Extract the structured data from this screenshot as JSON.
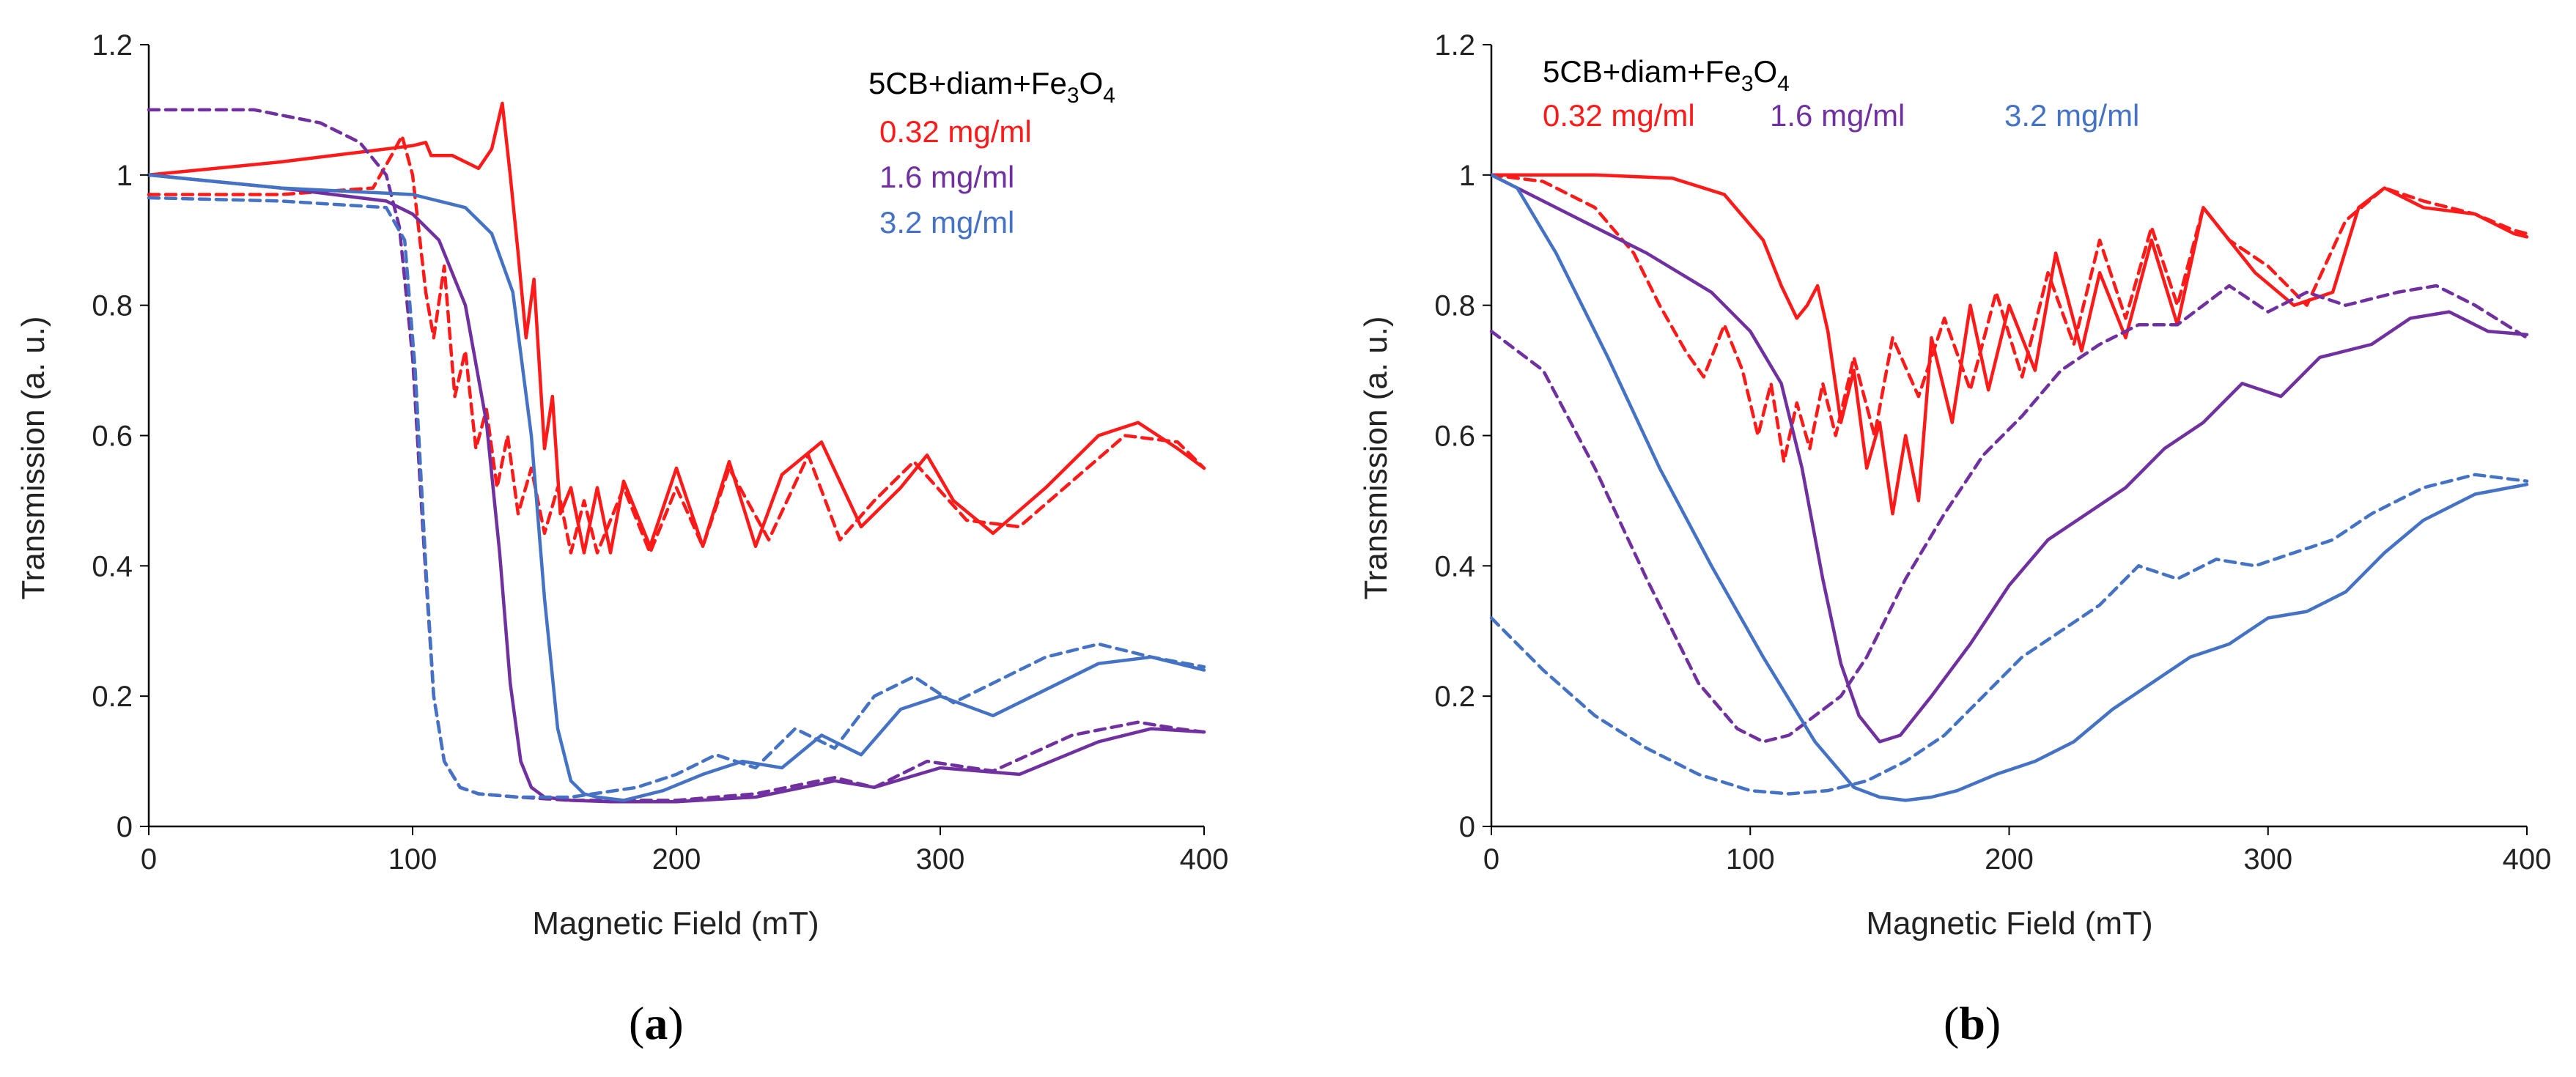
{
  "chart_data": [
    {
      "panel_label": "a",
      "type": "line",
      "xlabel": "Magnetic Field (mT)",
      "ylabel": "Transmission (a. u.)",
      "xlim": [
        0,
        400
      ],
      "ylim": [
        0,
        1.2
      ],
      "x_ticks": [
        "0",
        "100",
        "200",
        "300",
        "400"
      ],
      "y_ticks": [
        "0",
        "0.2",
        "0.4",
        "0.6",
        "0.8",
        "1",
        "1.2"
      ],
      "grid": false,
      "legend_position": "top-right",
      "legend": {
        "title": "5CB+diam+Fe3O4",
        "title_main": "5CB+diam+Fe",
        "title_sub1": "3",
        "title_mid": "O",
        "title_sub2": "4",
        "entries": [
          {
            "label": "0.32 mg/ml",
            "color": "#ff1a1a"
          },
          {
            "label": "1.6 mg/ml",
            "color": "#7030a0"
          },
          {
            "label": "3.2 mg/ml",
            "color": "#4472c4"
          }
        ]
      },
      "series": [
        {
          "conc": "0.32 mg/ml",
          "style": "solid",
          "color": "#ff1a1a",
          "x": [
            0,
            50,
            90,
            100,
            105,
            107,
            115,
            125,
            130,
            134,
            137,
            140,
            143,
            146,
            150,
            153,
            156,
            160,
            165,
            170,
            175,
            180,
            190,
            200,
            210,
            220,
            230,
            240,
            255,
            270,
            285,
            295,
            305,
            320,
            340,
            360,
            375,
            390,
            400
          ],
          "y": [
            1.0,
            1.02,
            1.04,
            1.045,
            1.05,
            1.03,
            1.03,
            1.01,
            1.04,
            1.11,
            1.0,
            0.88,
            0.75,
            0.84,
            0.58,
            0.66,
            0.48,
            0.52,
            0.42,
            0.52,
            0.42,
            0.53,
            0.43,
            0.55,
            0.43,
            0.56,
            0.43,
            0.54,
            0.59,
            0.46,
            0.52,
            0.57,
            0.5,
            0.45,
            0.52,
            0.6,
            0.62,
            0.58,
            0.55
          ]
        },
        {
          "conc": "0.32 mg/ml",
          "style": "dashed",
          "color": "#ff1a1a",
          "x": [
            0,
            50,
            85,
            92,
            96,
            100,
            105,
            108,
            112,
            116,
            120,
            124,
            128,
            132,
            136,
            140,
            145,
            150,
            155,
            160,
            165,
            170,
            180,
            190,
            200,
            210,
            220,
            235,
            250,
            262,
            275,
            290,
            310,
            330,
            350,
            370,
            390,
            400
          ],
          "y": [
            0.97,
            0.97,
            0.98,
            1.03,
            1.06,
            1.0,
            0.82,
            0.75,
            0.86,
            0.66,
            0.73,
            0.58,
            0.64,
            0.52,
            0.6,
            0.48,
            0.55,
            0.45,
            0.52,
            0.42,
            0.5,
            0.42,
            0.52,
            0.42,
            0.52,
            0.43,
            0.55,
            0.44,
            0.57,
            0.44,
            0.5,
            0.56,
            0.47,
            0.46,
            0.53,
            0.6,
            0.59,
            0.55
          ]
        },
        {
          "conc": "1.6 mg/ml",
          "style": "solid",
          "color": "#7030a0",
          "x": [
            0,
            50,
            90,
            100,
            110,
            120,
            128,
            133,
            137,
            141,
            145,
            150,
            160,
            175,
            200,
            230,
            260,
            275,
            300,
            330,
            360,
            380,
            400
          ],
          "y": [
            1.0,
            0.98,
            0.96,
            0.94,
            0.9,
            0.8,
            0.62,
            0.42,
            0.22,
            0.1,
            0.06,
            0.045,
            0.04,
            0.038,
            0.038,
            0.045,
            0.07,
            0.06,
            0.09,
            0.08,
            0.13,
            0.15,
            0.145
          ]
        },
        {
          "conc": "1.6 mg/ml",
          "style": "dashed",
          "color": "#7030a0",
          "x": [
            0,
            40,
            65,
            80,
            90,
            95,
            100,
            104,
            108,
            112,
            118,
            125,
            140,
            160,
            200,
            230,
            260,
            275,
            295,
            320,
            350,
            375,
            390,
            400
          ],
          "y": [
            1.1,
            1.1,
            1.08,
            1.05,
            1.0,
            0.92,
            0.72,
            0.45,
            0.2,
            0.1,
            0.06,
            0.05,
            0.045,
            0.04,
            0.04,
            0.05,
            0.075,
            0.06,
            0.1,
            0.085,
            0.14,
            0.16,
            0.15,
            0.145
          ]
        },
        {
          "conc": "3.2 mg/ml",
          "style": "solid",
          "color": "#4472c4",
          "x": [
            0,
            50,
            100,
            120,
            130,
            138,
            145,
            150,
            155,
            160,
            165,
            170,
            180,
            195,
            210,
            225,
            240,
            255,
            270,
            285,
            300,
            320,
            340,
            360,
            380,
            400
          ],
          "y": [
            1.0,
            0.98,
            0.97,
            0.95,
            0.91,
            0.82,
            0.6,
            0.35,
            0.15,
            0.07,
            0.05,
            0.045,
            0.04,
            0.055,
            0.08,
            0.1,
            0.09,
            0.14,
            0.11,
            0.18,
            0.2,
            0.17,
            0.21,
            0.25,
            0.26,
            0.24
          ]
        },
        {
          "conc": "3.2 mg/ml",
          "style": "dashed",
          "color": "#4472c4",
          "x": [
            0,
            50,
            90,
            97,
            101,
            105,
            108,
            112,
            118,
            125,
            140,
            160,
            185,
            200,
            215,
            230,
            245,
            260,
            275,
            290,
            305,
            320,
            340,
            360,
            380,
            400
          ],
          "y": [
            0.965,
            0.96,
            0.95,
            0.9,
            0.7,
            0.4,
            0.2,
            0.1,
            0.06,
            0.05,
            0.045,
            0.045,
            0.06,
            0.08,
            0.11,
            0.09,
            0.15,
            0.12,
            0.2,
            0.23,
            0.19,
            0.22,
            0.26,
            0.28,
            0.26,
            0.245
          ]
        }
      ]
    },
    {
      "panel_label": "b",
      "type": "line",
      "xlabel": "Magnetic Field (mT)",
      "ylabel": "Transmission (a. u.)",
      "xlim": [
        0,
        400
      ],
      "ylim": [
        0,
        1.2
      ],
      "x_ticks": [
        "0",
        "100",
        "200",
        "300",
        "400"
      ],
      "y_ticks": [
        "0",
        "0.2",
        "0.4",
        "0.6",
        "0.8",
        "1",
        "1.2"
      ],
      "grid": false,
      "legend_position": "top",
      "legend": {
        "title": "5CB+diam+Fe3O4",
        "title_main": "5CB+diam+Fe",
        "title_sub1": "3",
        "title_mid": "O",
        "title_sub2": "4",
        "entries": [
          {
            "label": "0.32 mg/ml",
            "color": "#ff1a1a"
          },
          {
            "label": "1.6 mg/ml",
            "color": "#7030a0"
          },
          {
            "label": "3.2 mg/ml",
            "color": "#4472c4"
          }
        ]
      },
      "series": [
        {
          "conc": "0.32 mg/ml",
          "style": "solid",
          "color": "#ff1a1a",
          "x": [
            0,
            40,
            70,
            90,
            105,
            112,
            118,
            122,
            126,
            130,
            135,
            140,
            145,
            150,
            155,
            160,
            165,
            170,
            178,
            185,
            192,
            200,
            210,
            218,
            228,
            235,
            245,
            255,
            265,
            275,
            285,
            295,
            310,
            325,
            335,
            345,
            360,
            380,
            395,
            400
          ],
          "y": [
            1.0,
            1.0,
            0.995,
            0.97,
            0.9,
            0.83,
            0.78,
            0.8,
            0.83,
            0.76,
            0.62,
            0.7,
            0.55,
            0.62,
            0.48,
            0.6,
            0.5,
            0.75,
            0.62,
            0.8,
            0.67,
            0.8,
            0.7,
            0.88,
            0.73,
            0.85,
            0.75,
            0.9,
            0.77,
            0.95,
            0.9,
            0.85,
            0.8,
            0.82,
            0.95,
            0.98,
            0.95,
            0.94,
            0.91,
            0.905
          ]
        },
        {
          "conc": "0.32 mg/ml",
          "style": "dashed",
          "color": "#ff1a1a",
          "x": [
            0,
            20,
            40,
            55,
            65,
            75,
            82,
            90,
            97,
            103,
            108,
            113,
            118,
            123,
            128,
            133,
            140,
            148,
            155,
            165,
            175,
            185,
            195,
            205,
            215,
            225,
            235,
            245,
            255,
            265,
            275,
            285,
            300,
            315,
            330,
            345,
            360,
            380,
            395,
            400
          ],
          "y": [
            1.0,
            0.99,
            0.95,
            0.88,
            0.8,
            0.73,
            0.69,
            0.77,
            0.7,
            0.6,
            0.68,
            0.56,
            0.65,
            0.58,
            0.68,
            0.6,
            0.72,
            0.6,
            0.75,
            0.66,
            0.78,
            0.67,
            0.82,
            0.69,
            0.85,
            0.74,
            0.9,
            0.78,
            0.92,
            0.8,
            0.95,
            0.9,
            0.86,
            0.8,
            0.93,
            0.98,
            0.96,
            0.94,
            0.915,
            0.91
          ]
        },
        {
          "conc": "1.6 mg/ml",
          "style": "solid",
          "color": "#7030a0",
          "x": [
            0,
            15,
            35,
            60,
            85,
            100,
            112,
            120,
            128,
            135,
            142,
            150,
            158,
            170,
            185,
            200,
            215,
            230,
            245,
            260,
            275,
            290,
            305,
            320,
            340,
            355,
            370,
            385,
            400
          ],
          "y": [
            1.0,
            0.97,
            0.93,
            0.88,
            0.82,
            0.76,
            0.68,
            0.55,
            0.38,
            0.25,
            0.17,
            0.13,
            0.14,
            0.2,
            0.28,
            0.37,
            0.44,
            0.48,
            0.52,
            0.58,
            0.62,
            0.68,
            0.66,
            0.72,
            0.74,
            0.78,
            0.79,
            0.76,
            0.755
          ]
        },
        {
          "conc": "1.6 mg/ml",
          "style": "dashed",
          "color": "#7030a0",
          "x": [
            0,
            20,
            40,
            60,
            80,
            95,
            105,
            115,
            125,
            135,
            145,
            160,
            175,
            190,
            205,
            220,
            235,
            250,
            265,
            275,
            285,
            300,
            315,
            330,
            350,
            365,
            380,
            400
          ],
          "y": [
            0.76,
            0.7,
            0.55,
            0.38,
            0.22,
            0.15,
            0.13,
            0.14,
            0.17,
            0.2,
            0.26,
            0.38,
            0.48,
            0.57,
            0.63,
            0.7,
            0.74,
            0.77,
            0.77,
            0.8,
            0.83,
            0.79,
            0.82,
            0.8,
            0.82,
            0.83,
            0.8,
            0.75
          ]
        },
        {
          "conc": "3.2 mg/ml",
          "style": "solid",
          "color": "#4472c4",
          "x": [
            0,
            10,
            25,
            45,
            65,
            85,
            105,
            125,
            140,
            150,
            160,
            170,
            180,
            195,
            210,
            225,
            240,
            255,
            270,
            285,
            300,
            315,
            330,
            345,
            360,
            380,
            400
          ],
          "y": [
            1.0,
            0.98,
            0.88,
            0.72,
            0.55,
            0.4,
            0.26,
            0.13,
            0.06,
            0.045,
            0.04,
            0.045,
            0.055,
            0.08,
            0.1,
            0.13,
            0.18,
            0.22,
            0.26,
            0.28,
            0.32,
            0.33,
            0.36,
            0.42,
            0.47,
            0.51,
            0.525
          ]
        },
        {
          "conc": "3.2 mg/ml",
          "style": "dashed",
          "color": "#4472c4",
          "x": [
            0,
            20,
            40,
            60,
            80,
            100,
            115,
            130,
            145,
            160,
            175,
            190,
            205,
            220,
            235,
            250,
            265,
            280,
            295,
            310,
            325,
            340,
            360,
            380,
            400
          ],
          "y": [
            0.32,
            0.24,
            0.17,
            0.12,
            0.08,
            0.055,
            0.05,
            0.055,
            0.07,
            0.1,
            0.14,
            0.2,
            0.26,
            0.3,
            0.34,
            0.4,
            0.38,
            0.41,
            0.4,
            0.42,
            0.44,
            0.48,
            0.52,
            0.54,
            0.53
          ]
        }
      ]
    }
  ]
}
